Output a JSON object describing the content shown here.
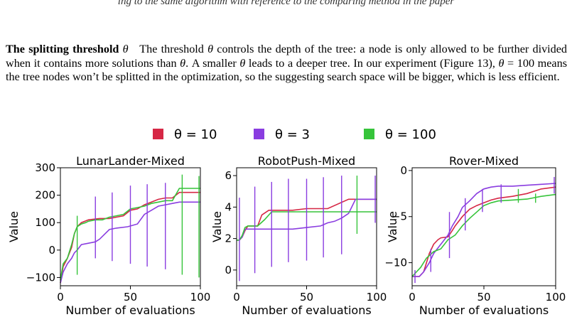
{
  "caption_top": "ing to the same algorithm with reference to the comparing method in the paper",
  "paragraph": {
    "heading": "The splitting threshold",
    "symbol": "θ",
    "body_1": "The threshold ",
    "body_2": " controls the depth of the tree: a node is only allowed to be further divided when it contains more solutions than ",
    "body_3": ". A smaller ",
    "body_4": " leads to a deeper tree. In our experiment (Figure 13), ",
    "body_5": " = 100 means the tree nodes won’t be splitted in the optimization, so the suggesting search space will be bigger, which is less efficient."
  },
  "figure": {
    "legend": [
      {
        "label": "θ = 10",
        "color": "#d62745"
      },
      {
        "label": "θ = 3",
        "color": "#8a3de0"
      },
      {
        "label": "θ = 100",
        "color": "#36c43a"
      }
    ],
    "x_label": "Number of evaluations",
    "y_label": "Value"
  },
  "chart_data": [
    {
      "type": "line",
      "title": "LunarLander-Mixed",
      "xlabel": "Number of evaluations",
      "ylabel": "Value",
      "xlim": [
        0,
        100
      ],
      "ylim": [
        -130,
        300
      ],
      "xticks": [
        0,
        50,
        100
      ],
      "yticks": [
        -100,
        0,
        100,
        200,
        300
      ],
      "grid": false,
      "series": [
        {
          "name": "θ = 10",
          "color": "#d62745",
          "points": [
            [
              0,
              -120
            ],
            [
              2,
              -60
            ],
            [
              5,
              -30
            ],
            [
              8,
              10
            ],
            [
              10,
              60
            ],
            [
              12,
              85
            ],
            [
              15,
              100
            ],
            [
              20,
              110
            ],
            [
              28,
              115
            ],
            [
              35,
              115
            ],
            [
              40,
              120
            ],
            [
              45,
              125
            ],
            [
              50,
              145
            ],
            [
              55,
              150
            ],
            [
              60,
              165
            ],
            [
              65,
              175
            ],
            [
              70,
              185
            ],
            [
              75,
              190
            ],
            [
              80,
              190
            ],
            [
              85,
              210
            ],
            [
              100,
              210
            ]
          ]
        },
        {
          "name": "θ = 3",
          "color": "#8a3de0",
          "points": [
            [
              0,
              -120
            ],
            [
              2,
              -80
            ],
            [
              5,
              -50
            ],
            [
              8,
              -30
            ],
            [
              10,
              -10
            ],
            [
              12,
              0
            ],
            [
              15,
              20
            ],
            [
              20,
              25
            ],
            [
              25,
              30
            ],
            [
              28,
              40
            ],
            [
              35,
              75
            ],
            [
              40,
              80
            ],
            [
              48,
              85
            ],
            [
              55,
              95
            ],
            [
              60,
              130
            ],
            [
              65,
              145
            ],
            [
              70,
              160
            ],
            [
              75,
              165
            ],
            [
              80,
              170
            ],
            [
              85,
              175
            ],
            [
              100,
              175
            ]
          ]
        },
        {
          "name": "θ = 100",
          "color": "#36c43a",
          "points": [
            [
              0,
              -110
            ],
            [
              2,
              -50
            ],
            [
              5,
              -30
            ],
            [
              8,
              20
            ],
            [
              10,
              60
            ],
            [
              12,
              85
            ],
            [
              15,
              95
            ],
            [
              18,
              100
            ],
            [
              20,
              105
            ],
            [
              25,
              110
            ],
            [
              30,
              110
            ],
            [
              35,
              120
            ],
            [
              40,
              125
            ],
            [
              45,
              130
            ],
            [
              50,
              150
            ],
            [
              55,
              155
            ],
            [
              60,
              160
            ],
            [
              65,
              170
            ],
            [
              70,
              175
            ],
            [
              75,
              180
            ],
            [
              80,
              180
            ],
            [
              85,
              225
            ],
            [
              100,
              225
            ]
          ]
        }
      ],
      "error_bars": [
        {
          "x": 12,
          "low": -90,
          "high": 125,
          "color": "#36c43a"
        },
        {
          "x": 25,
          "low": -30,
          "high": 195,
          "color": "#8a3de0"
        },
        {
          "x": 37,
          "low": -40,
          "high": 210,
          "color": "#8a3de0"
        },
        {
          "x": 50,
          "low": -50,
          "high": 235,
          "color": "#8a3de0"
        },
        {
          "x": 62,
          "low": -60,
          "high": 240,
          "color": "#8a3de0"
        },
        {
          "x": 75,
          "low": -70,
          "high": 245,
          "color": "#8a3de0"
        },
        {
          "x": 87,
          "low": -90,
          "high": 275,
          "color": "#36c43a"
        },
        {
          "x": 99,
          "low": -100,
          "high": 270,
          "color": "#36c43a"
        }
      ]
    },
    {
      "type": "line",
      "title": "RobotPush-Mixed",
      "xlabel": "Number of evaluations",
      "ylabel": "Value",
      "xlim": [
        0,
        100
      ],
      "ylim": [
        -1,
        6.5
      ],
      "xticks": [
        0,
        50,
        100
      ],
      "yticks": [
        0,
        2,
        4,
        6
      ],
      "grid": false,
      "series": [
        {
          "name": "θ = 10",
          "color": "#d62745",
          "points": [
            [
              0,
              1.9
            ],
            [
              2,
              1.9
            ],
            [
              4,
              2.1
            ],
            [
              6,
              2.5
            ],
            [
              8,
              2.8
            ],
            [
              10,
              2.8
            ],
            [
              15,
              2.8
            ],
            [
              18,
              3.5
            ],
            [
              23,
              3.8
            ],
            [
              40,
              3.8
            ],
            [
              50,
              3.9
            ],
            [
              65,
              3.9
            ],
            [
              80,
              4.5
            ],
            [
              100,
              4.5
            ]
          ]
        },
        {
          "name": "θ = 3",
          "color": "#8a3de0",
          "points": [
            [
              0,
              1.9
            ],
            [
              2,
              1.9
            ],
            [
              4,
              2.1
            ],
            [
              6,
              2.6
            ],
            [
              10,
              2.6
            ],
            [
              20,
              2.6
            ],
            [
              40,
              2.6
            ],
            [
              50,
              2.7
            ],
            [
              60,
              2.8
            ],
            [
              65,
              3.0
            ],
            [
              70,
              3.1
            ],
            [
              75,
              3.3
            ],
            [
              80,
              3.6
            ],
            [
              85,
              4.5
            ],
            [
              100,
              4.5
            ]
          ]
        },
        {
          "name": "θ = 100",
          "color": "#36c43a",
          "points": [
            [
              0,
              1.9
            ],
            [
              2,
              1.9
            ],
            [
              4,
              2.2
            ],
            [
              6,
              2.7
            ],
            [
              8,
              2.8
            ],
            [
              15,
              2.8
            ],
            [
              20,
              3.2
            ],
            [
              25,
              3.7
            ],
            [
              40,
              3.7
            ],
            [
              60,
              3.7
            ],
            [
              80,
              3.7
            ],
            [
              100,
              3.7
            ]
          ]
        }
      ],
      "error_bars": [
        {
          "x": 2,
          "low": -0.7,
          "high": 4.6,
          "color": "#8a3de0"
        },
        {
          "x": 13,
          "low": -0.2,
          "high": 5.3,
          "color": "#8a3de0"
        },
        {
          "x": 25,
          "low": 0.2,
          "high": 5.6,
          "color": "#8a3de0"
        },
        {
          "x": 37,
          "low": 0.5,
          "high": 5.8,
          "color": "#8a3de0"
        },
        {
          "x": 50,
          "low": 0.6,
          "high": 5.8,
          "color": "#8a3de0"
        },
        {
          "x": 62,
          "low": 0.8,
          "high": 5.9,
          "color": "#8a3de0"
        },
        {
          "x": 75,
          "low": 1.0,
          "high": 6.0,
          "color": "#8a3de0"
        },
        {
          "x": 86,
          "low": 2.3,
          "high": 6.0,
          "color": "#36c43a"
        },
        {
          "x": 99,
          "low": 3.0,
          "high": 6.0,
          "color": "#8a3de0"
        }
      ]
    },
    {
      "type": "line",
      "title": "Rover-Mixed",
      "xlabel": "Number of evaluations",
      "ylabel": "Value",
      "xlim": [
        0,
        100
      ],
      "ylim": [
        -12.5,
        0.3
      ],
      "xticks": [
        0,
        50,
        100
      ],
      "yticks": [
        -10,
        -5,
        0
      ],
      "grid": false,
      "series": [
        {
          "name": "θ = 10",
          "color": "#d62745",
          "points": [
            [
              0,
              -11.5
            ],
            [
              5,
              -11.5
            ],
            [
              8,
              -11
            ],
            [
              10,
              -10
            ],
            [
              12,
              -9
            ],
            [
              15,
              -8
            ],
            [
              18,
              -7.5
            ],
            [
              20,
              -7.3
            ],
            [
              25,
              -7.2
            ],
            [
              28,
              -6.5
            ],
            [
              30,
              -6
            ],
            [
              35,
              -5
            ],
            [
              40,
              -4.2
            ],
            [
              45,
              -3.8
            ],
            [
              50,
              -3.5
            ],
            [
              55,
              -3.2
            ],
            [
              60,
              -3
            ],
            [
              70,
              -2.8
            ],
            [
              80,
              -2.5
            ],
            [
              90,
              -2
            ],
            [
              100,
              -1.8
            ]
          ]
        },
        {
          "name": "θ = 3",
          "color": "#8a3de0",
          "points": [
            [
              0,
              -11.5
            ],
            [
              5,
              -11.5
            ],
            [
              8,
              -11
            ],
            [
              12,
              -10
            ],
            [
              15,
              -9
            ],
            [
              20,
              -8
            ],
            [
              25,
              -7
            ],
            [
              28,
              -6
            ],
            [
              32,
              -5
            ],
            [
              35,
              -4
            ],
            [
              40,
              -3.3
            ],
            [
              45,
              -2.5
            ],
            [
              50,
              -2
            ],
            [
              55,
              -1.8
            ],
            [
              60,
              -1.7
            ],
            [
              70,
              -1.7
            ],
            [
              80,
              -1.6
            ],
            [
              90,
              -1.5
            ],
            [
              100,
              -1.4
            ]
          ]
        },
        {
          "name": "θ = 100",
          "color": "#36c43a",
          "points": [
            [
              0,
              -11.5
            ],
            [
              3,
              -11
            ],
            [
              6,
              -10.5
            ],
            [
              10,
              -9.5
            ],
            [
              15,
              -8.8
            ],
            [
              20,
              -8.5
            ],
            [
              25,
              -7.5
            ],
            [
              30,
              -7
            ],
            [
              35,
              -6
            ],
            [
              40,
              -5.2
            ],
            [
              45,
              -4.5
            ],
            [
              50,
              -3.8
            ],
            [
              55,
              -3.5
            ],
            [
              60,
              -3.3
            ],
            [
              70,
              -3.2
            ],
            [
              80,
              -3.1
            ],
            [
              90,
              -2.8
            ],
            [
              100,
              -2.6
            ]
          ]
        }
      ],
      "error_bars": [
        {
          "x": 2,
          "low": -12.2,
          "high": -10.8,
          "color": "#8a3de0"
        },
        {
          "x": 13,
          "low": -11.0,
          "high": -8.5,
          "color": "#8a3de0"
        },
        {
          "x": 26,
          "low": -9.5,
          "high": -4.5,
          "color": "#8a3de0"
        },
        {
          "x": 37,
          "low": -6.5,
          "high": -3.0,
          "color": "#8a3de0"
        },
        {
          "x": 49,
          "low": -4.5,
          "high": -2.0,
          "color": "#8a3de0"
        },
        {
          "x": 62,
          "low": -3.5,
          "high": -1.5,
          "color": "#8a3de0"
        },
        {
          "x": 74,
          "low": -3.5,
          "high": -2.0,
          "color": "#36c43a"
        },
        {
          "x": 86,
          "low": -3.5,
          "high": -2.5,
          "color": "#36c43a"
        },
        {
          "x": 99,
          "low": -2.5,
          "high": -0.7,
          "color": "#8a3de0"
        }
      ]
    }
  ]
}
